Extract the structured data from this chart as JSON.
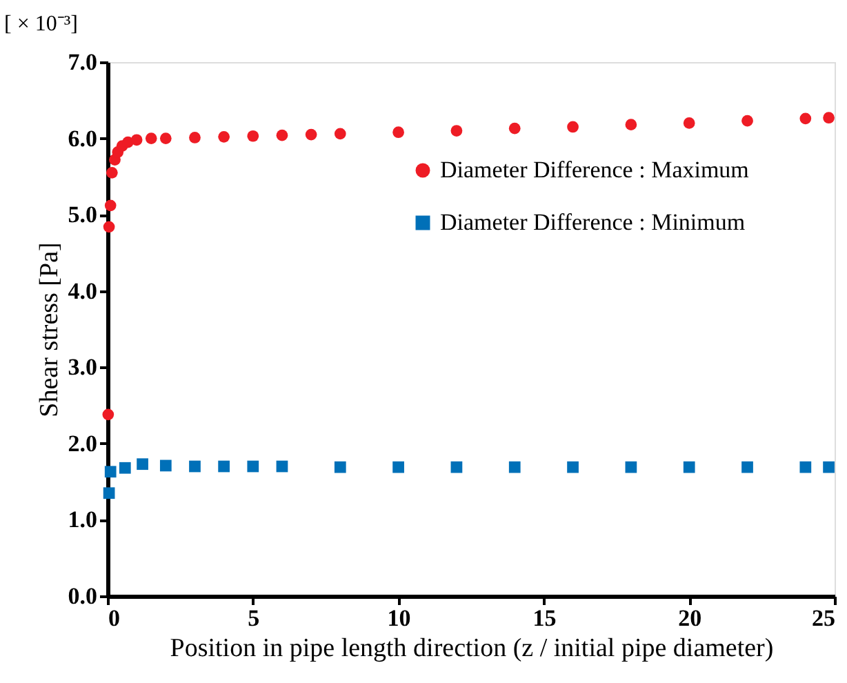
{
  "chart_data": {
    "type": "scatter",
    "xlabel": "Position in pipe length direction (z / initial pipe diameter)",
    "ylabel": "Shear stress [Pa]",
    "annotations": [
      "[ × 10⁻³]"
    ],
    "xlim": [
      0,
      25
    ],
    "xticks": [
      0,
      5,
      10,
      15,
      20,
      25
    ],
    "ylim": [
      0,
      7
    ],
    "yticks": [
      {
        "value": 0,
        "label": "0.0"
      },
      {
        "value": 1,
        "label": "1.0"
      },
      {
        "value": 2,
        "label": "2.0"
      },
      {
        "value": 3,
        "label": "3.0"
      },
      {
        "value": 4,
        "label": "4.0"
      },
      {
        "value": 5,
        "label": "5.0"
      },
      {
        "value": 6,
        "label": "6.0"
      },
      {
        "value": 7,
        "label": "7.0"
      }
    ],
    "grid": false,
    "legend": "top right",
    "series": [
      {
        "name": "Diameter Difference : Maximum",
        "color": "#ee1c25",
        "marker": "circle",
        "x": [
          0.02,
          0.05,
          0.1,
          0.15,
          0.25,
          0.35,
          0.5,
          0.7,
          1,
          1.5,
          2,
          3,
          4,
          5,
          6,
          7,
          8,
          10,
          12,
          14,
          16,
          18,
          20,
          22,
          24,
          24.8
        ],
        "values": [
          2.38,
          4.84,
          5.12,
          5.55,
          5.72,
          5.82,
          5.9,
          5.95,
          5.98,
          6.0,
          6.0,
          6.01,
          6.02,
          6.03,
          6.04,
          6.05,
          6.06,
          6.08,
          6.1,
          6.13,
          6.15,
          6.18,
          6.2,
          6.23,
          6.26,
          6.27
        ]
      },
      {
        "name": "Diameter Difference : Minimum",
        "color": "#0070b8",
        "marker": "square",
        "x": [
          0.05,
          0.1,
          0.6,
          1.2,
          2,
          3,
          4,
          5,
          6,
          8,
          10,
          12,
          14,
          16,
          18,
          20,
          22,
          24,
          24.8
        ],
        "values": [
          1.35,
          1.63,
          1.68,
          1.73,
          1.71,
          1.7,
          1.7,
          1.7,
          1.7,
          1.69,
          1.69,
          1.69,
          1.69,
          1.69,
          1.69,
          1.69,
          1.69,
          1.69,
          1.69
        ]
      }
    ]
  }
}
